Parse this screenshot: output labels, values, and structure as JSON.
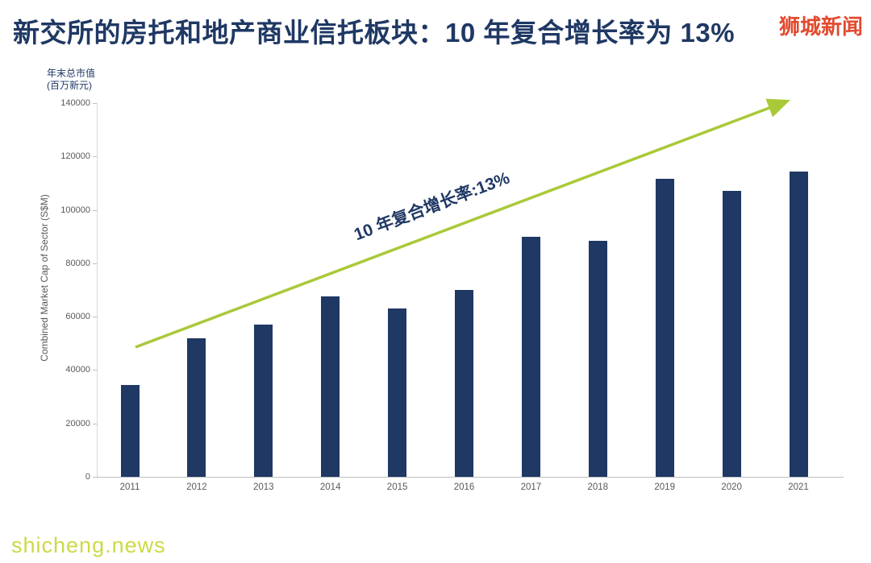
{
  "header": {
    "title": "新交所的房托和地产商业信托板块：10 年复合增长率为 13%",
    "watermark": "狮城新闻"
  },
  "footer": {
    "watermark": "shicheng.news"
  },
  "chart_data": {
    "type": "bar",
    "title": "新交所的房托和地产商业信托板块：10 年复合增长率为 13%",
    "unit_label_line1": "年末总市值",
    "unit_label_line2": "(百万新元)",
    "ylabel": "Combined Market Cap of Sector (S$M)",
    "xlabel": "",
    "categories": [
      "2011",
      "2012",
      "2013",
      "2014",
      "2015",
      "2016",
      "2017",
      "2018",
      "2019",
      "2020",
      "2021"
    ],
    "values": [
      34500,
      52000,
      57000,
      67500,
      63000,
      70000,
      90000,
      88500,
      111500,
      107000,
      114500
    ],
    "yticks": [
      0,
      20000,
      40000,
      60000,
      80000,
      100000,
      120000,
      140000
    ],
    "ylim": [
      0,
      140000
    ],
    "annotation": "10 年复合增长率:13%",
    "bar_color": "#1f3864",
    "arrow_color": "#a9c938",
    "axis_text_color": "#595959",
    "grid": false,
    "legend": "none"
  }
}
